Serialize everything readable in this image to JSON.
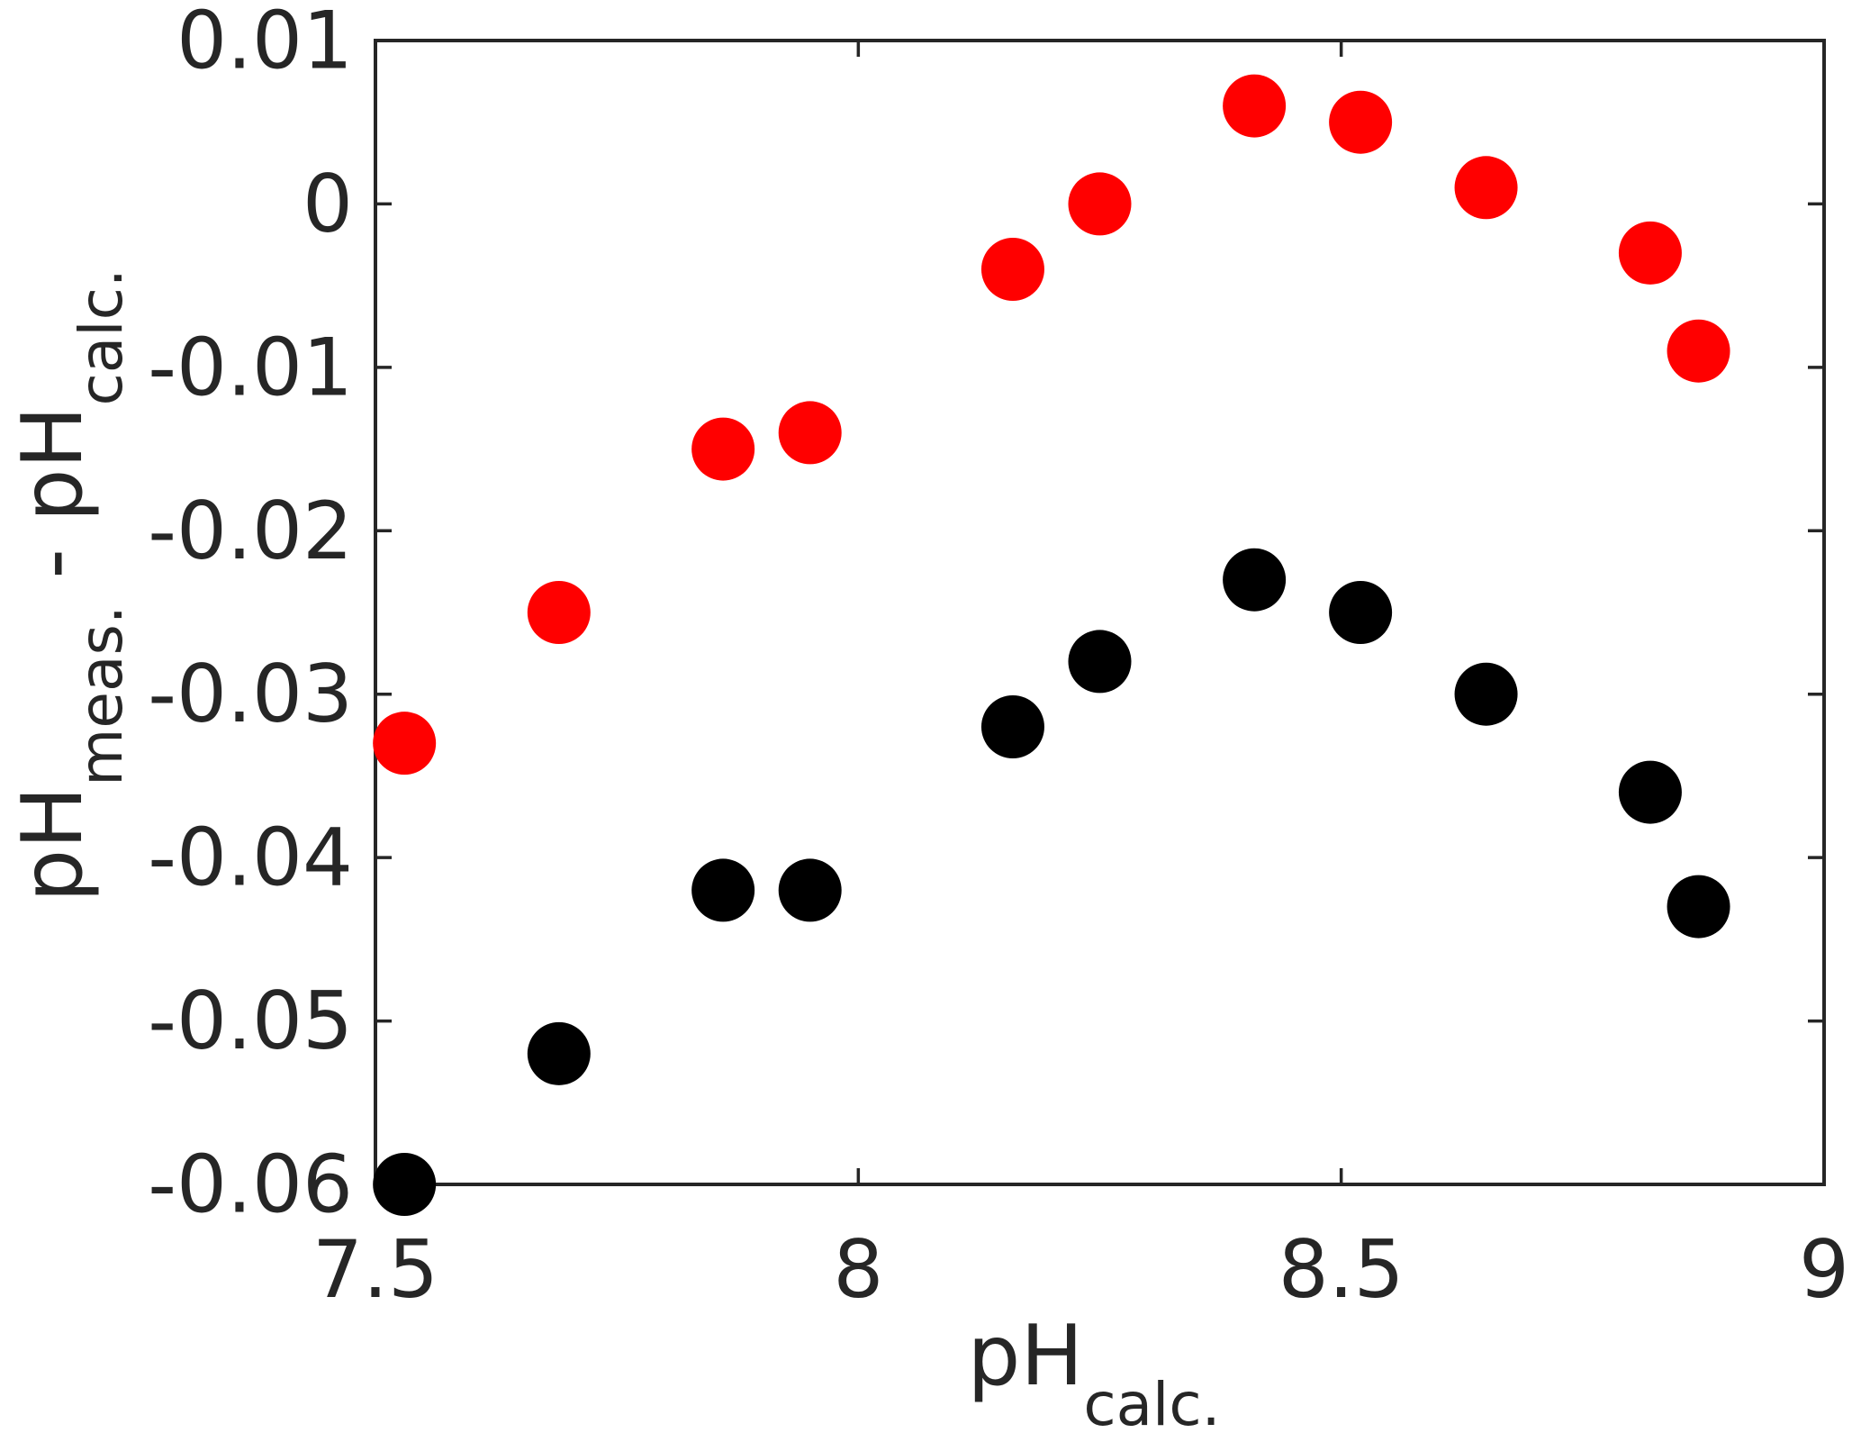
{
  "figure": {
    "background": "#ffffff",
    "axis_color": "#262626",
    "text_color": "#262626"
  },
  "chart_data": {
    "type": "scatter",
    "title": "",
    "xlabel": "pH_calc.",
    "ylabel": "pH_meas. - pH_calc.",
    "xlabel_parts": [
      {
        "text": "pH",
        "sub": false
      },
      {
        "text": "calc.",
        "sub": true
      }
    ],
    "ylabel_parts": [
      {
        "text": "pH",
        "sub": false
      },
      {
        "text": "meas.",
        "sub": true
      },
      {
        "text": " - pH",
        "sub": false
      },
      {
        "text": "calc.",
        "sub": true
      }
    ],
    "xlim": [
      7.5,
      9
    ],
    "ylim": [
      -0.06,
      0.01
    ],
    "xticks": {
      "values": [
        7.5,
        8,
        8.5,
        9
      ],
      "labels": [
        "7.5",
        "8",
        "8.5",
        "9"
      ]
    },
    "yticks": {
      "values": [
        0.01,
        0,
        -0.01,
        -0.02,
        -0.03,
        -0.04,
        -0.05,
        -0.06
      ],
      "labels": [
        "0.01",
        "0",
        "-0.01",
        "-0.02",
        "-0.03",
        "-0.04",
        "-0.05",
        "-0.06"
      ]
    },
    "grid": false,
    "legend": null,
    "box": true,
    "tick_direction": "in",
    "marker": {
      "shape": "circle",
      "radius_px": 35
    },
    "x": [
      7.53,
      7.69,
      7.86,
      7.95,
      8.16,
      8.25,
      8.41,
      8.52,
      8.65,
      8.82,
      8.87
    ],
    "series": [
      {
        "name": "red-series",
        "color": "#ff0000",
        "values": [
          -0.033,
          -0.025,
          -0.015,
          -0.014,
          -0.004,
          0.0,
          0.006,
          0.005,
          0.001,
          -0.003,
          -0.009
        ]
      },
      {
        "name": "black-series",
        "color": "#000000",
        "values": [
          -0.06,
          -0.052,
          -0.042,
          -0.042,
          -0.032,
          -0.028,
          -0.023,
          -0.025,
          -0.03,
          -0.036,
          -0.043
        ]
      }
    ]
  }
}
